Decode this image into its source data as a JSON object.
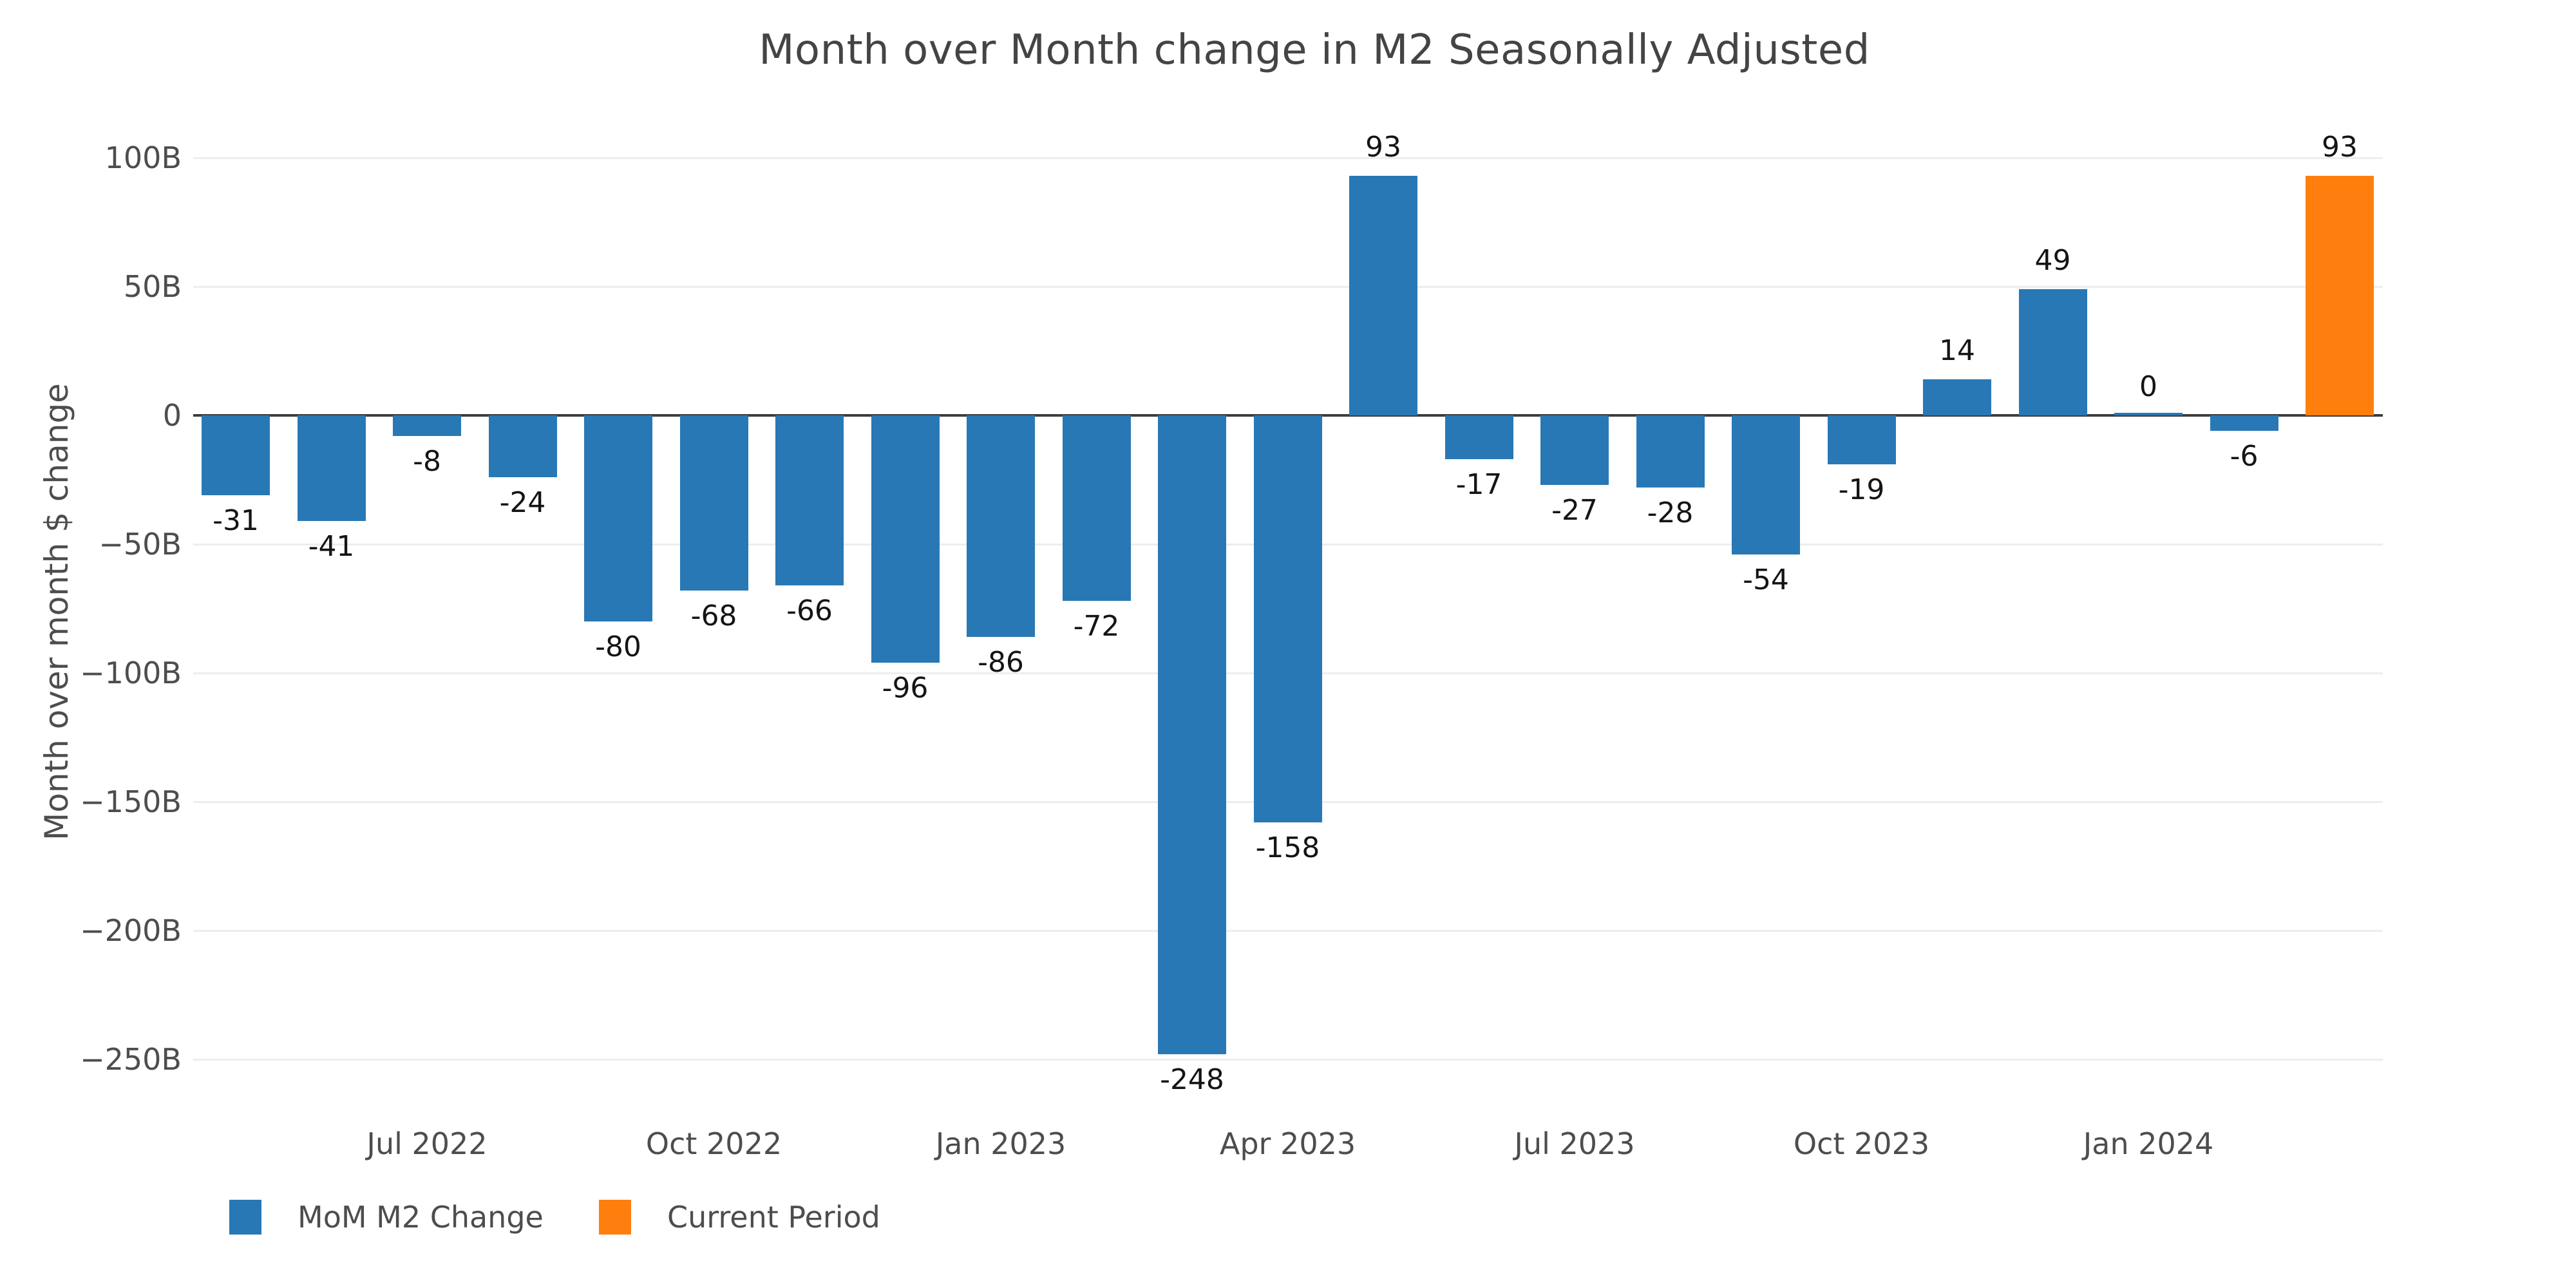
{
  "chart_data": {
    "type": "bar",
    "title": "Month over Month change in M2 Seasonally Adjusted",
    "ylabel": "Month over month $ change",
    "ylim": [
      -250,
      100
    ],
    "grid": true,
    "legend_position": "bottom-left",
    "values": [
      -31,
      -41,
      -8,
      -24,
      -80,
      -68,
      -66,
      -96,
      -86,
      -72,
      -248,
      -158,
      93,
      -17,
      -27,
      -28,
      -54,
      -19,
      14,
      49,
      0,
      -6,
      93
    ],
    "bar_labels": [
      "-31",
      "-41",
      "-8",
      "-24",
      "-80",
      "-68",
      "-66",
      "-96",
      "-86",
      "-72",
      "-248",
      "-158",
      "93",
      "-17",
      "-27",
      "-28",
      "-54",
      "-19",
      "14",
      "49",
      "0",
      "-6",
      "93"
    ],
    "current_period_index": 22,
    "x_ticks": [
      {
        "index": 2,
        "label": "Jul 2022"
      },
      {
        "index": 5,
        "label": "Oct 2022"
      },
      {
        "index": 8,
        "label": "Jan 2023"
      },
      {
        "index": 11,
        "label": "Apr 2023"
      },
      {
        "index": 14,
        "label": "Jul 2023"
      },
      {
        "index": 17,
        "label": "Oct 2023"
      },
      {
        "index": 20,
        "label": "Jan 2024"
      }
    ],
    "y_ticks": [
      {
        "value": 100,
        "label": "100B"
      },
      {
        "value": 50,
        "label": "50B"
      },
      {
        "value": 0,
        "label": "0"
      },
      {
        "value": -50,
        "label": "−50B"
      },
      {
        "value": -100,
        "label": "−100B"
      },
      {
        "value": -150,
        "label": "−150B"
      },
      {
        "value": -200,
        "label": "−200B"
      },
      {
        "value": -250,
        "label": "−250B"
      }
    ],
    "legend": [
      {
        "label": "MoM M2 Change",
        "color": "#2878b5"
      },
      {
        "label": "Current Period",
        "color": "#ff7f0e"
      }
    ]
  },
  "colors": {
    "bar": "#2878b5",
    "current_period": "#ff7f0e",
    "grid_line": "#ededed",
    "zero_line": "#3d3d3d",
    "axis_text": "#4d4d4d",
    "title_text": "#444444",
    "value_label_text": "#141414",
    "background": "#ffffff"
  }
}
